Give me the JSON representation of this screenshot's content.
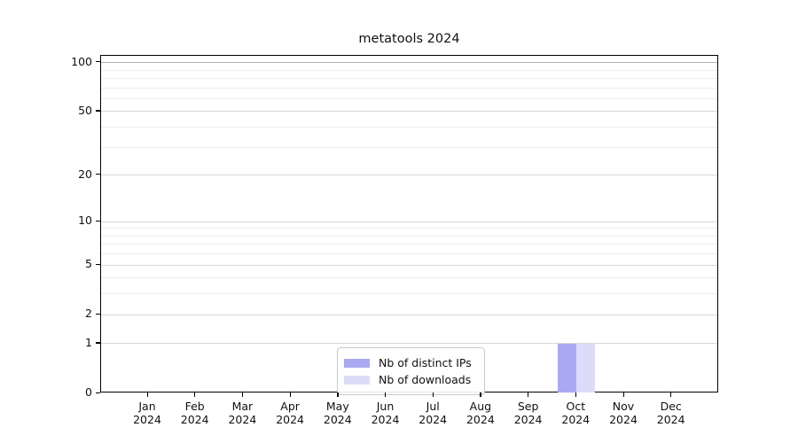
{
  "chart_data": {
    "type": "bar",
    "title": "metatools 2024",
    "categories": [
      "Jan 2024",
      "Feb 2024",
      "Mar 2024",
      "Apr 2024",
      "May 2024",
      "Jun 2024",
      "Jul 2024",
      "Aug 2024",
      "Sep 2024",
      "Oct 2024",
      "Nov 2024",
      "Dec 2024"
    ],
    "category_month_labels": [
      "Jan",
      "Feb",
      "Mar",
      "Apr",
      "May",
      "Jun",
      "Jul",
      "Aug",
      "Sep",
      "Oct",
      "Nov",
      "Dec"
    ],
    "category_year_labels": [
      "2024",
      "2024",
      "2024",
      "2024",
      "2024",
      "2024",
      "2024",
      "2024",
      "2024",
      "2024",
      "2024",
      "2024"
    ],
    "series": [
      {
        "name": "Nb of distinct IPs",
        "color": "#a9a9f1",
        "values": [
          0,
          0,
          0,
          0,
          0,
          0,
          0,
          0,
          0,
          1,
          0,
          0
        ]
      },
      {
        "name": "Nb of downloads",
        "color": "#dcdcf8",
        "values": [
          0,
          0,
          0,
          0,
          0,
          0,
          0,
          0,
          0,
          1,
          0,
          0
        ]
      }
    ],
    "xlabel": "",
    "ylabel": "",
    "yscale": "log1p",
    "ylim": [
      0,
      110
    ],
    "ytick_values": [
      0,
      1,
      2,
      5,
      10,
      20,
      50,
      100
    ],
    "ytick_labels": [
      "0",
      "1",
      "2",
      "5",
      "10",
      "20",
      "50",
      "100"
    ],
    "minor_ytick_values": [
      3,
      4,
      6,
      7,
      8,
      9,
      30,
      40,
      60,
      70,
      80,
      90
    ],
    "grid": "horizontal",
    "grid_colors": {
      "major": "#d8d8d8",
      "minor": "#ededed",
      "top": "#b2b2b2"
    },
    "legend_position": "lower center"
  }
}
